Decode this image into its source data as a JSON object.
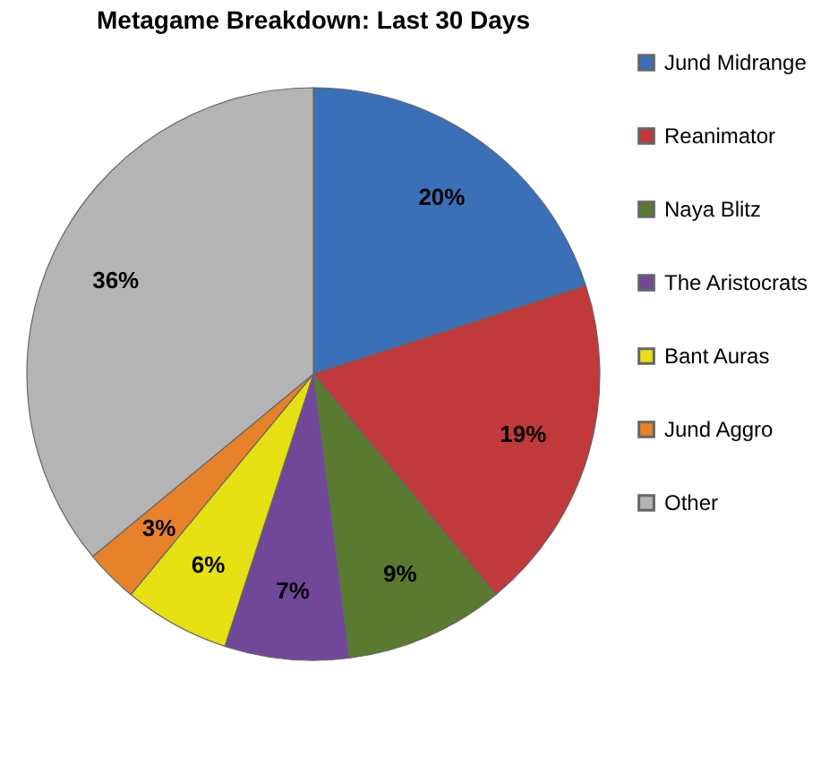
{
  "chart_data": {
    "type": "pie",
    "title": "Metagame Breakdown: Last 30 Days",
    "categories": [
      "Jund Midrange",
      "Reanimator",
      "Naya Blitz",
      "The Aristocrats",
      "Bant Auras",
      "Jund Aggro",
      "Other"
    ],
    "values": [
      20,
      19,
      9,
      7,
      6,
      3,
      36
    ],
    "colors": [
      "#3a70b8",
      "#c0393b",
      "#5a7a30",
      "#71479a",
      "#e6e012",
      "#e8822a",
      "#b4b4b4"
    ],
    "value_labels": [
      "20%",
      "19%",
      "9%",
      "7%",
      "6%",
      "3%",
      "36%"
    ],
    "legend": "right"
  }
}
